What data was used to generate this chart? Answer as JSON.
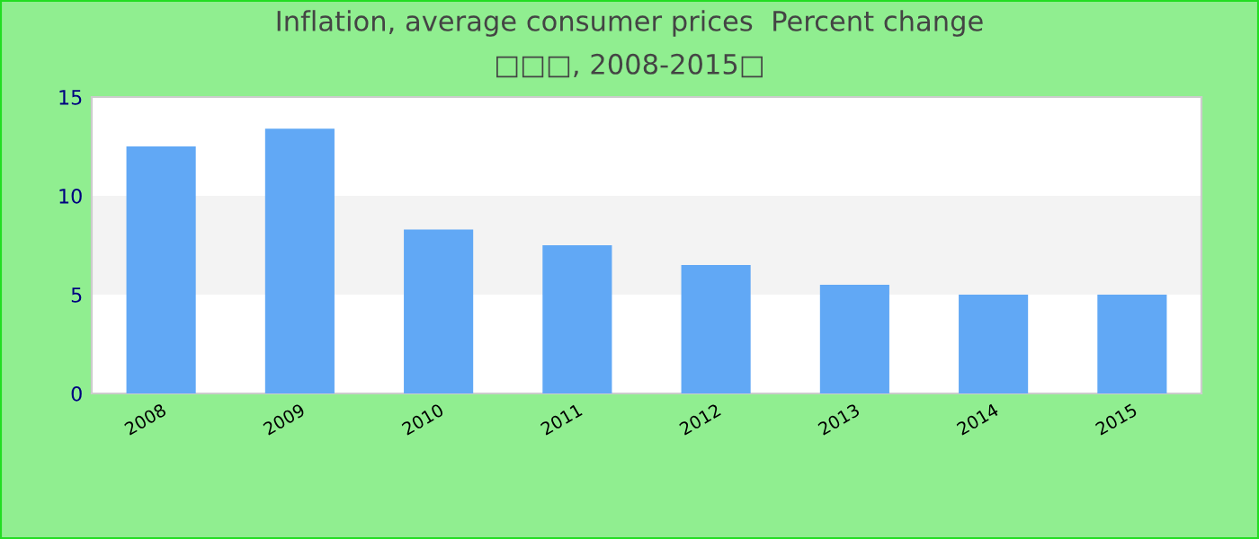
{
  "chart_data": {
    "type": "bar",
    "title": "Inflation, average consumer prices  Percent change",
    "subtitle": "□□□, 2008-2015□",
    "categories": [
      "2008",
      "2009",
      "2010",
      "2011",
      "2012",
      "2013",
      "2014",
      "2015"
    ],
    "values": [
      12.5,
      13.4,
      8.3,
      7.5,
      6.5,
      5.5,
      5.0,
      5.0
    ],
    "color": "#61a8f5",
    "ylim": [
      0,
      15
    ],
    "yticks": [
      0,
      5,
      10,
      15
    ],
    "grid": false,
    "bands": [
      {
        "axis": "y",
        "from": 5,
        "to": 10,
        "color": "#f3f3f3"
      }
    ]
  }
}
